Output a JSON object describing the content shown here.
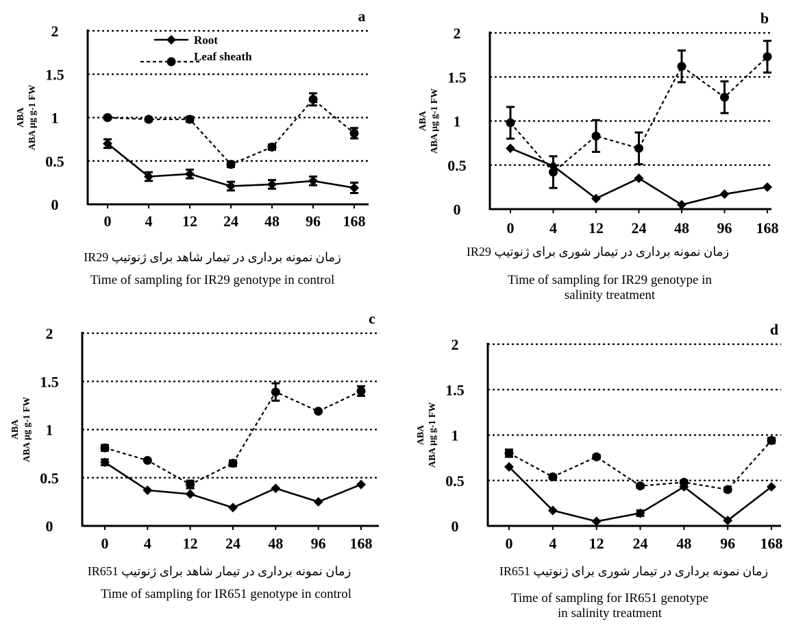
{
  "figure": {
    "legend": {
      "root": "Root",
      "leaf_sheath": "Leaf sheath"
    },
    "colors": {
      "line": "#000000",
      "grid": "#000000",
      "background": "#ffffff"
    }
  },
  "chart_data": [
    {
      "panel": "a",
      "type": "line",
      "ylabel_top": "ABA",
      "ylabel": "ABA µg g-1 FW",
      "yticks": [
        "0",
        "0.5",
        "1",
        "1.5",
        "2"
      ],
      "ylim": [
        0,
        2
      ],
      "categories": [
        "0",
        "4",
        "12",
        "24",
        "48",
        "96",
        "168"
      ],
      "legend": true,
      "caption_fa": "زمان نمونه برداری در تیمار شاهد برای ژنوتیپ IR29",
      "caption_en": "Time of sampling for IR29 genotype in control",
      "series": [
        {
          "name": "Root",
          "style": "solid",
          "marker": "diamond",
          "values": [
            0.7,
            0.32,
            0.35,
            0.21,
            0.23,
            0.27,
            0.19
          ],
          "errors": [
            0.05,
            0.05,
            0.05,
            0.05,
            0.05,
            0.05,
            0.06
          ]
        },
        {
          "name": "Leaf sheath",
          "style": "dashed",
          "marker": "circle",
          "values": [
            1.0,
            0.98,
            0.98,
            0.46,
            0.66,
            1.21,
            0.82
          ],
          "errors": [
            0.02,
            0.02,
            0.03,
            0.03,
            0.03,
            0.07,
            0.06
          ]
        }
      ]
    },
    {
      "panel": "b",
      "type": "line",
      "ylabel_top": "ABA",
      "ylabel": "ABA µg g-1 FW",
      "yticks": [
        "0",
        "0.5",
        "1",
        "1.5",
        "2"
      ],
      "ylim": [
        0,
        2
      ],
      "categories": [
        "0",
        "4",
        "12",
        "24",
        "48",
        "96",
        "168"
      ],
      "legend": false,
      "caption_fa": "زمان نمونه برداری در تیمار شوری برای ژنوتیپ IR29",
      "caption_en": "Time of sampling for IR29 genotype in salinity treatment",
      "series": [
        {
          "name": "Root",
          "style": "solid",
          "marker": "diamond",
          "values": [
            0.69,
            0.49,
            0.12,
            0.35,
            0.05,
            0.17,
            0.25
          ],
          "errors": [
            0.0,
            0.0,
            0.0,
            0.0,
            0.0,
            0.0,
            0.0
          ]
        },
        {
          "name": "Leaf sheath",
          "style": "dashed",
          "marker": "circle",
          "values": [
            0.98,
            0.42,
            0.83,
            0.69,
            1.62,
            1.27,
            1.73
          ],
          "errors": [
            0.18,
            0.18,
            0.18,
            0.18,
            0.18,
            0.18,
            0.18
          ]
        }
      ]
    },
    {
      "panel": "c",
      "type": "line",
      "ylabel_top": "ABA",
      "ylabel": "ABA µg g-1 FW",
      "yticks": [
        "0",
        "0.5",
        "1",
        "1.5",
        "2"
      ],
      "ylim": [
        0,
        2
      ],
      "categories": [
        "0",
        "4",
        "12",
        "24",
        "48",
        "96",
        "168"
      ],
      "legend": false,
      "caption_fa": "زمان نمونه برداری در تیمار شاهد برای ژنوتیپ IR651",
      "caption_en": "Time of sampling for IR651 genotype in control",
      "series": [
        {
          "name": "Root",
          "style": "solid",
          "marker": "diamond",
          "values": [
            0.66,
            0.37,
            0.33,
            0.19,
            0.39,
            0.25,
            0.43
          ],
          "errors": [
            0.03,
            0.0,
            0.0,
            0.0,
            0.0,
            0.0,
            0.0
          ]
        },
        {
          "name": "Leaf sheath",
          "style": "dashed",
          "marker": "circle",
          "values": [
            0.81,
            0.68,
            0.43,
            0.65,
            1.39,
            1.19,
            1.4
          ],
          "errors": [
            0.03,
            0.0,
            0.04,
            0.03,
            0.09,
            0.0,
            0.05
          ]
        }
      ]
    },
    {
      "panel": "d",
      "type": "line",
      "ylabel_top": "ABA",
      "ylabel": "ABA µg g-1 FW",
      "yticks": [
        "0",
        "0.5",
        "1",
        "1.5",
        "2"
      ],
      "ylim": [
        0,
        2
      ],
      "categories": [
        "0",
        "4",
        "12",
        "24",
        "48",
        "96",
        "168"
      ],
      "legend": false,
      "caption_fa": "زمان نمونه برداری در تیمار شوری برای ژنوتیپ IR651",
      "caption_en": "Time of sampling for IR651 genotype in salinity treatment",
      "series": [
        {
          "name": "Root",
          "style": "solid",
          "marker": "diamond",
          "values": [
            0.65,
            0.17,
            0.05,
            0.14,
            0.43,
            0.06,
            0.43
          ],
          "errors": [
            0.0,
            0.0,
            0.0,
            0.03,
            0.0,
            0.0,
            0.0
          ]
        },
        {
          "name": "Leaf sheath",
          "style": "dashed",
          "marker": "circle",
          "values": [
            0.8,
            0.54,
            0.76,
            0.44,
            0.48,
            0.4,
            0.94
          ],
          "errors": [
            0.04,
            0.02,
            0.02,
            0.02,
            0.02,
            0.02,
            0.03
          ]
        }
      ]
    }
  ]
}
